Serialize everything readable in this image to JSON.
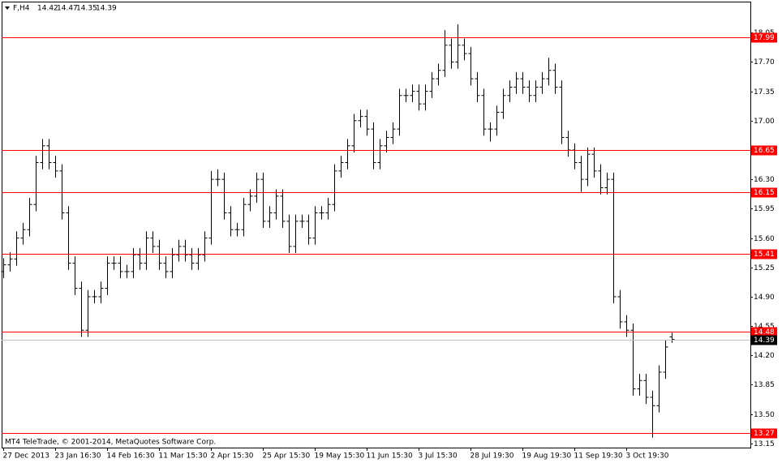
{
  "chart_data": {
    "type": "ohlc",
    "symbol": "F,H4",
    "copyright": "MT4 TeleTrade, © 2001-2014, MetaQuotes Software Corp.",
    "color": "#000000",
    "level_color": "#ff0000",
    "bid_color": "#c0c0c0",
    "ylim": [
      13.1,
      18.42
    ],
    "yticks": [
      13.15,
      {
        "value": 13.5,
        "label": "13.50"
      },
      13.85,
      {
        "value": 14.2,
        "label": "14.20"
      },
      14.55,
      {
        "value": 14.9,
        "label": "14.90"
      },
      15.25,
      {
        "value": 15.6,
        "label": "15.60"
      },
      15.95,
      {
        "value": 16.3,
        "label": "16.30"
      },
      16.65,
      {
        "value": 17,
        "label": "17.00"
      },
      17.35,
      {
        "value": 17.7,
        "label": "17.70"
      },
      18.05
    ],
    "levels": [
      17.99,
      16.65,
      16.15,
      15.41,
      14.48,
      13.27
    ],
    "bid": 14.39,
    "categories": [
      "27 Dec 2013",
      null,
      null,
      null,
      null,
      null,
      null,
      null,
      "23 Jan 16:30",
      null,
      null,
      null,
      null,
      null,
      null,
      null,
      "14 Feb 16:30",
      null,
      null,
      null,
      null,
      null,
      null,
      null,
      "11 Mar 15:30",
      null,
      null,
      null,
      null,
      null,
      null,
      null,
      "2 Apr 15:30",
      null,
      null,
      null,
      null,
      null,
      null,
      null,
      "25 Apr 15:30",
      null,
      null,
      null,
      null,
      null,
      null,
      null,
      "19 May 15:30",
      null,
      null,
      null,
      null,
      null,
      null,
      null,
      "11 Jun 15:30",
      null,
      null,
      null,
      null,
      null,
      null,
      null,
      "3 Jul 15:30",
      null,
      null,
      null,
      null,
      null,
      null,
      null,
      "28 Jul 19:30",
      null,
      null,
      null,
      null,
      null,
      null,
      null,
      "19 Aug 19:30",
      null,
      null,
      null,
      null,
      null,
      null,
      null,
      "11 Sep 19:30",
      null,
      null,
      null,
      null,
      null,
      null,
      null,
      "3 Oct 19:30",
      null,
      null,
      null,
      null,
      null,
      null,
      null
    ],
    "open": [
      15.2,
      15.28,
      15.35,
      15.6,
      15.7,
      16.0,
      16.5,
      16.7,
      16.5,
      16.4,
      15.9,
      15.3,
      15.0,
      14.5,
      14.9,
      14.9,
      15.0,
      15.3,
      15.3,
      15.2,
      15.2,
      15.4,
      15.3,
      15.6,
      15.5,
      15.3,
      15.2,
      15.4,
      15.5,
      15.4,
      15.3,
      15.4,
      15.6,
      16.3,
      16.3,
      15.9,
      15.7,
      15.7,
      16.0,
      16.1,
      16.3,
      15.8,
      15.9,
      16.1,
      15.8,
      15.5,
      15.8,
      15.8,
      15.6,
      15.9,
      15.9,
      16.0,
      16.4,
      16.5,
      16.7,
      17.0,
      17.05,
      16.9,
      16.5,
      16.7,
      16.8,
      16.9,
      17.3,
      17.3,
      17.35,
      17.2,
      17.35,
      17.5,
      17.6,
      17.9,
      17.7,
      17.9,
      17.8,
      17.5,
      17.3,
      16.9,
      16.9,
      17.1,
      17.3,
      17.4,
      17.5,
      17.4,
      17.3,
      17.4,
      17.5,
      17.6,
      17.4,
      16.8,
      16.65,
      16.5,
      16.3,
      16.6,
      16.4,
      16.2,
      16.3,
      14.9,
      14.6,
      14.5,
      13.8,
      13.9,
      13.7,
      13.6,
      14.0,
      14.42
    ],
    "high": [
      15.36,
      15.43,
      15.68,
      15.78,
      16.08,
      16.58,
      16.78,
      16.78,
      16.58,
      16.48,
      15.98,
      15.38,
      15.08,
      14.98,
      14.98,
      15.08,
      15.38,
      15.38,
      15.38,
      15.28,
      15.48,
      15.48,
      15.68,
      15.68,
      15.58,
      15.38,
      15.48,
      15.58,
      15.58,
      15.48,
      15.48,
      15.68,
      16.4,
      16.42,
      16.38,
      15.98,
      15.78,
      16.08,
      16.18,
      16.38,
      16.38,
      15.98,
      16.18,
      16.18,
      15.88,
      15.88,
      15.88,
      15.88,
      15.98,
      15.98,
      16.08,
      16.48,
      16.58,
      16.78,
      17.08,
      17.13,
      17.13,
      16.98,
      16.78,
      16.88,
      16.98,
      17.38,
      17.38,
      17.43,
      17.43,
      17.43,
      17.58,
      17.68,
      18.08,
      17.98,
      18.15,
      17.98,
      17.88,
      17.58,
      17.38,
      16.98,
      17.18,
      17.38,
      17.48,
      17.58,
      17.58,
      17.48,
      17.48,
      17.58,
      17.75,
      17.68,
      17.48,
      16.88,
      16.73,
      16.58,
      16.68,
      16.68,
      16.48,
      16.38,
      16.38,
      14.98,
      14.68,
      14.58,
      13.98,
      13.98,
      13.78,
      14.08,
      14.38,
      14.47
    ],
    "low": [
      15.12,
      15.2,
      15.27,
      15.52,
      15.62,
      15.92,
      16.42,
      16.42,
      16.32,
      15.82,
      15.22,
      14.92,
      14.42,
      14.42,
      14.82,
      14.82,
      14.92,
      15.22,
      15.12,
      15.12,
      15.12,
      15.22,
      15.22,
      15.42,
      15.22,
      15.12,
      15.12,
      15.32,
      15.32,
      15.22,
      15.22,
      15.32,
      15.52,
      16.22,
      15.82,
      15.62,
      15.62,
      15.62,
      15.92,
      16.02,
      15.72,
      15.72,
      15.82,
      15.72,
      15.42,
      15.42,
      15.72,
      15.52,
      15.52,
      15.82,
      15.82,
      15.92,
      16.32,
      16.42,
      16.62,
      16.92,
      16.82,
      16.42,
      16.42,
      16.62,
      16.72,
      16.82,
      17.22,
      17.22,
      17.12,
      17.12,
      17.27,
      17.42,
      17.52,
      17.62,
      17.62,
      17.72,
      17.42,
      17.22,
      16.82,
      16.75,
      16.82,
      17.02,
      17.22,
      17.32,
      17.32,
      17.22,
      17.22,
      17.32,
      17.42,
      17.32,
      16.72,
      16.57,
      16.42,
      16.15,
      16.22,
      16.32,
      16.12,
      16.12,
      14.82,
      14.52,
      14.42,
      13.72,
      13.72,
      13.62,
      13.22,
      13.52,
      13.92,
      14.35
    ],
    "close": [
      15.28,
      15.35,
      15.6,
      15.7,
      16.0,
      16.5,
      16.7,
      16.5,
      16.4,
      15.9,
      15.3,
      15.0,
      14.5,
      14.9,
      14.9,
      15.0,
      15.3,
      15.3,
      15.2,
      15.2,
      15.4,
      15.3,
      15.6,
      15.5,
      15.3,
      15.2,
      15.4,
      15.5,
      15.4,
      15.3,
      15.4,
      15.6,
      16.3,
      16.3,
      15.9,
      15.7,
      15.7,
      16.0,
      16.1,
      16.3,
      15.8,
      15.9,
      16.1,
      15.8,
      15.5,
      15.8,
      15.8,
      15.6,
      15.9,
      15.9,
      16.0,
      16.4,
      16.5,
      16.7,
      17.0,
      17.05,
      16.9,
      16.5,
      16.7,
      16.8,
      16.9,
      17.3,
      17.3,
      17.35,
      17.2,
      17.35,
      17.5,
      17.6,
      17.9,
      17.7,
      17.9,
      17.8,
      17.5,
      17.3,
      16.9,
      16.9,
      17.1,
      17.3,
      17.4,
      17.5,
      17.4,
      17.3,
      17.4,
      17.5,
      17.6,
      17.4,
      16.8,
      16.65,
      16.5,
      16.3,
      16.6,
      16.4,
      16.2,
      16.3,
      14.9,
      14.6,
      14.5,
      13.8,
      13.9,
      13.7,
      13.6,
      14.0,
      14.3,
      14.39
    ]
  }
}
